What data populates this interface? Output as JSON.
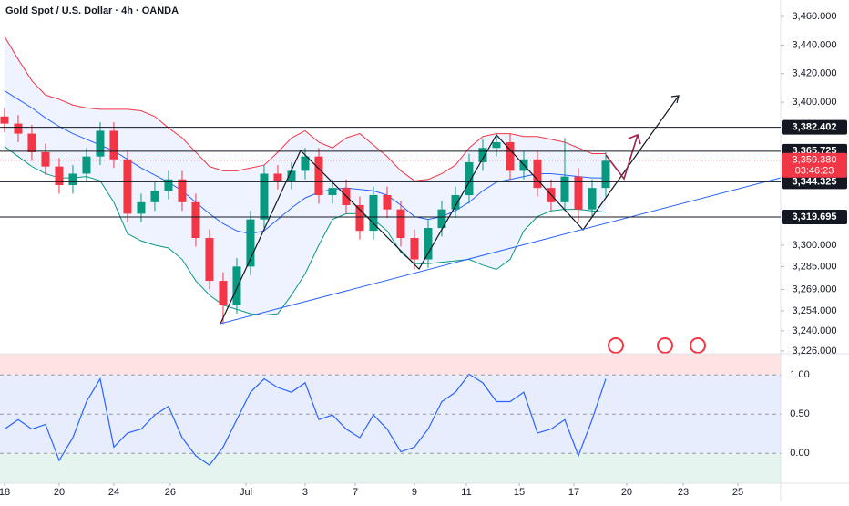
{
  "chart_data": [
    {
      "type": "candlestick",
      "title": "Gold Spot / U.S. Dollar · 4h · OANDA",
      "xlim": [
        -0.33,
        56.8
      ],
      "xticks": [
        {
          "value": 0,
          "label": "18"
        },
        {
          "value": 4,
          "label": "20"
        },
        {
          "value": 8,
          "label": "24"
        },
        {
          "value": 12.13,
          "label": "26"
        },
        {
          "value": 17.67,
          "label": "Jul"
        },
        {
          "value": 22,
          "label": "3"
        },
        {
          "value": 25.67,
          "label": "7"
        },
        {
          "value": 30,
          "label": "9"
        },
        {
          "value": 33.8,
          "label": "11"
        },
        {
          "value": 37.67,
          "label": "15"
        },
        {
          "value": 41.67,
          "label": "17"
        },
        {
          "value": 45.53,
          "label": "20"
        },
        {
          "value": 49.67,
          "label": "23"
        },
        {
          "value": 53.67,
          "label": "25"
        }
      ],
      "ylim": [
        3224,
        3471.5
      ],
      "yticks": [
        {
          "value": 3460,
          "label": "3,460.000"
        },
        {
          "value": 3440,
          "label": "3,440.000"
        },
        {
          "value": 3420,
          "label": "3,420.000"
        },
        {
          "value": 3400,
          "label": "3,400.000"
        },
        {
          "value": 3300,
          "label": "3,300.000"
        },
        {
          "value": 3285,
          "label": "3,285.000"
        },
        {
          "value": 3269,
          "label": "3,269.000"
        },
        {
          "value": 3254,
          "label": "3,254.000"
        },
        {
          "value": 3240,
          "label": "3,240.000"
        },
        {
          "value": 3226,
          "label": "3,226.000"
        }
      ],
      "up_color": "#089981",
      "down_color": "#f23645",
      "open": [
        3390,
        3385,
        3378,
        3365,
        3355,
        3342,
        3350,
        3362,
        3380,
        3360,
        3322,
        3330,
        3338,
        3346,
        3330,
        3305,
        3275,
        3258,
        3285,
        3318,
        3350,
        3345,
        3352,
        3362,
        3335,
        3340,
        3328,
        3310,
        3335,
        3325,
        3305,
        3290,
        3312,
        3325,
        3335,
        3358,
        3368,
        3372,
        3352,
        3360,
        3340,
        3330,
        3348,
        3325,
        3340
      ],
      "high": [
        3396,
        3391,
        3384,
        3371,
        3361,
        3356,
        3368,
        3386,
        3386,
        3366,
        3336,
        3344,
        3352,
        3352,
        3336,
        3311,
        3281,
        3291,
        3324,
        3356,
        3356,
        3358,
        3368,
        3368,
        3346,
        3346,
        3334,
        3341,
        3341,
        3331,
        3311,
        3318,
        3331,
        3341,
        3364,
        3374,
        3377,
        3378,
        3366,
        3366,
        3346,
        3375,
        3354,
        3346,
        3365
      ],
      "low": [
        3379,
        3372,
        3359,
        3349,
        3336,
        3336,
        3344,
        3356,
        3354,
        3316,
        3316,
        3324,
        3332,
        3324,
        3299,
        3269,
        3245,
        3252,
        3279,
        3312,
        3339,
        3339,
        3346,
        3329,
        3329,
        3322,
        3304,
        3304,
        3319,
        3299,
        3283,
        3284,
        3306,
        3319,
        3329,
        3352,
        3362,
        3346,
        3346,
        3334,
        3324,
        3324,
        3316,
        3319,
        3334
      ],
      "close": [
        3385,
        3378,
        3365,
        3355,
        3342,
        3350,
        3362,
        3380,
        3360,
        3322,
        3330,
        3338,
        3346,
        3330,
        3305,
        3275,
        3258,
        3285,
        3318,
        3350,
        3345,
        3352,
        3362,
        3335,
        3340,
        3328,
        3310,
        3335,
        3325,
        3305,
        3290,
        3312,
        3325,
        3335,
        3358,
        3368,
        3372,
        3352,
        3360,
        3340,
        3330,
        3348,
        3325,
        3340,
        3359
      ],
      "series": [
        {
          "color": "#f23645",
          "values": [
            3446,
            3430,
            3415,
            3405,
            3402,
            3398,
            3396,
            3395,
            3395,
            3395,
            3394,
            3390,
            3382,
            3375,
            3365,
            3355,
            3352,
            3352,
            3354,
            3356,
            3365,
            3375,
            3380,
            3372,
            3368,
            3375,
            3378,
            3370,
            3362,
            3352,
            3345,
            3346,
            3350,
            3356,
            3368,
            3376,
            3378,
            3378,
            3376,
            3376,
            3374,
            3372,
            3368,
            3364,
            3364
          ]
        },
        {
          "color": "#2962ff",
          "values": [
            3408,
            3402,
            3396,
            3389,
            3383,
            3378,
            3374,
            3370,
            3366,
            3360,
            3354,
            3349,
            3344,
            3338,
            3330,
            3322,
            3315,
            3310,
            3308,
            3310,
            3318,
            3326,
            3333,
            3337,
            3339,
            3340,
            3339,
            3338,
            3335,
            3328,
            3320,
            3318,
            3320,
            3324,
            3330,
            3338,
            3344,
            3346,
            3348,
            3350,
            3350,
            3349,
            3348,
            3347,
            3347
          ]
        },
        {
          "color": "#089981",
          "values": [
            3369,
            3362,
            3355,
            3350,
            3347,
            3347,
            3348,
            3345,
            3330,
            3308,
            3303,
            3300,
            3298,
            3290,
            3275,
            3265,
            3258,
            3255,
            3252,
            3251,
            3252,
            3265,
            3280,
            3300,
            3318,
            3322,
            3322,
            3318,
            3310,
            3295,
            3287,
            3287,
            3288,
            3289,
            3290,
            3286,
            3283,
            3290,
            3310,
            3320,
            3324,
            3325,
            3325,
            3324,
            3323
          ]
        }
      ],
      "levels": [
        {
          "value": 3382.402,
          "label": "3,382.402"
        },
        {
          "value": 3365.725,
          "label": "3,365.725"
        },
        {
          "value": 3344.325,
          "label": "3,344.325"
        },
        {
          "value": 3319.695,
          "label": "3,319.695"
        }
      ],
      "last_price": {
        "value": 3359.38,
        "label": "3,359.380"
      },
      "countdown": "03:46:23"
    },
    {
      "type": "line",
      "ylim": [
        -0.38,
        1.27
      ],
      "yticks": [
        {
          "value": 1,
          "label": "1.00"
        },
        {
          "value": 0.5,
          "label": "0.50"
        },
        {
          "value": 0,
          "label": "0.00"
        }
      ],
      "series": [
        {
          "color": "#2962ff",
          "values": [
            0.31,
            0.43,
            0.31,
            0.37,
            -0.09,
            0.2,
            0.66,
            0.95,
            0.08,
            0.26,
            0.31,
            0.49,
            0.6,
            0.2,
            -0.03,
            -0.15,
            0.08,
            0.43,
            0.78,
            0.95,
            0.84,
            0.78,
            0.9,
            0.43,
            0.49,
            0.31,
            0.2,
            0.49,
            0.31,
            0.02,
            0.08,
            0.31,
            0.66,
            0.78,
            1.01,
            0.9,
            0.66,
            0.66,
            0.78,
            0.26,
            0.31,
            0.43,
            -0.03,
            0.43,
            0.95
          ]
        }
      ]
    }
  ]
}
